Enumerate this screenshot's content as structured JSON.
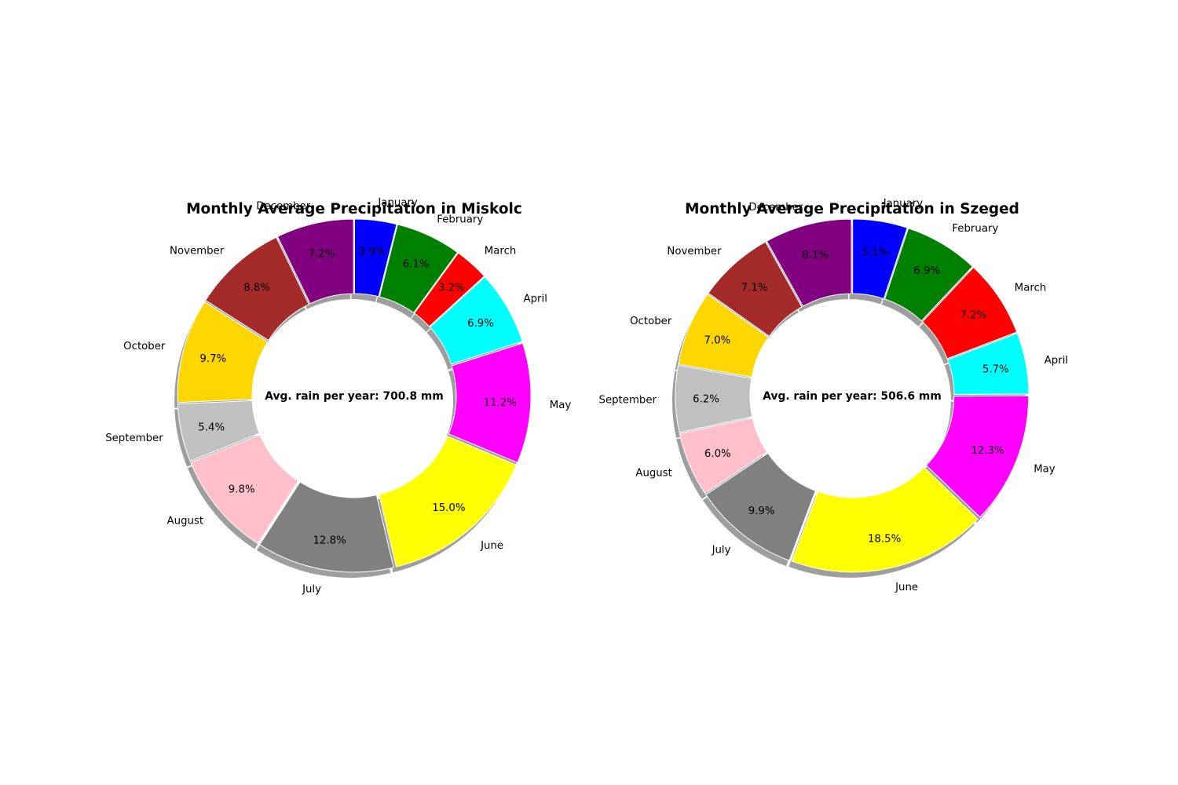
{
  "chart_data": [
    {
      "type": "pie",
      "title": "Monthly Average Precipitation in Miskolc",
      "center_text": "Avg. rain per year: 700.8 mm",
      "donut": true,
      "shadow": true,
      "start_angle_deg": 90,
      "direction": "clockwise",
      "categories": [
        "January",
        "February",
        "March",
        "April",
        "May",
        "June",
        "July",
        "August",
        "September",
        "October",
        "November",
        "December"
      ],
      "values": [
        3.9,
        6.1,
        3.2,
        6.9,
        11.2,
        15.0,
        12.8,
        9.8,
        5.4,
        9.7,
        8.8,
        7.2
      ],
      "value_labels": [
        "3.9%",
        "6.1%",
        "3.2%",
        "6.9%",
        "11.2%",
        "15.0%",
        "12.8%",
        "9.8%",
        "5.4%",
        "9.7%",
        "8.8%",
        "7.2%"
      ],
      "colors": [
        "#0000ff",
        "#008000",
        "#ff0000",
        "#00ffff",
        "#ff00ff",
        "#ffff00",
        "#808080",
        "#ffc0cb",
        "#c0c0c0",
        "#ffd700",
        "#a52a2a",
        "#800080"
      ]
    },
    {
      "type": "pie",
      "title": "Monthly Average Precipitation in Szeged",
      "center_text": "Avg. rain per year: 506.6 mm",
      "donut": true,
      "shadow": true,
      "start_angle_deg": 90,
      "direction": "clockwise",
      "categories": [
        "January",
        "February",
        "March",
        "April",
        "May",
        "June",
        "July",
        "August",
        "September",
        "October",
        "November",
        "December"
      ],
      "values": [
        5.1,
        6.9,
        7.2,
        5.7,
        12.3,
        18.5,
        9.9,
        6.0,
        6.2,
        7.0,
        7.1,
        8.1
      ],
      "value_labels": [
        "5.1%",
        "6.9%",
        "7.2%",
        "5.7%",
        "12.3%",
        "18.5%",
        "9.9%",
        "6.0%",
        "6.2%",
        "7.0%",
        "7.1%",
        "8.1%"
      ],
      "colors": [
        "#0000ff",
        "#008000",
        "#ff0000",
        "#00ffff",
        "#ff00ff",
        "#ffff00",
        "#808080",
        "#ffc0cb",
        "#c0c0c0",
        "#ffd700",
        "#a52a2a",
        "#800080"
      ]
    }
  ]
}
